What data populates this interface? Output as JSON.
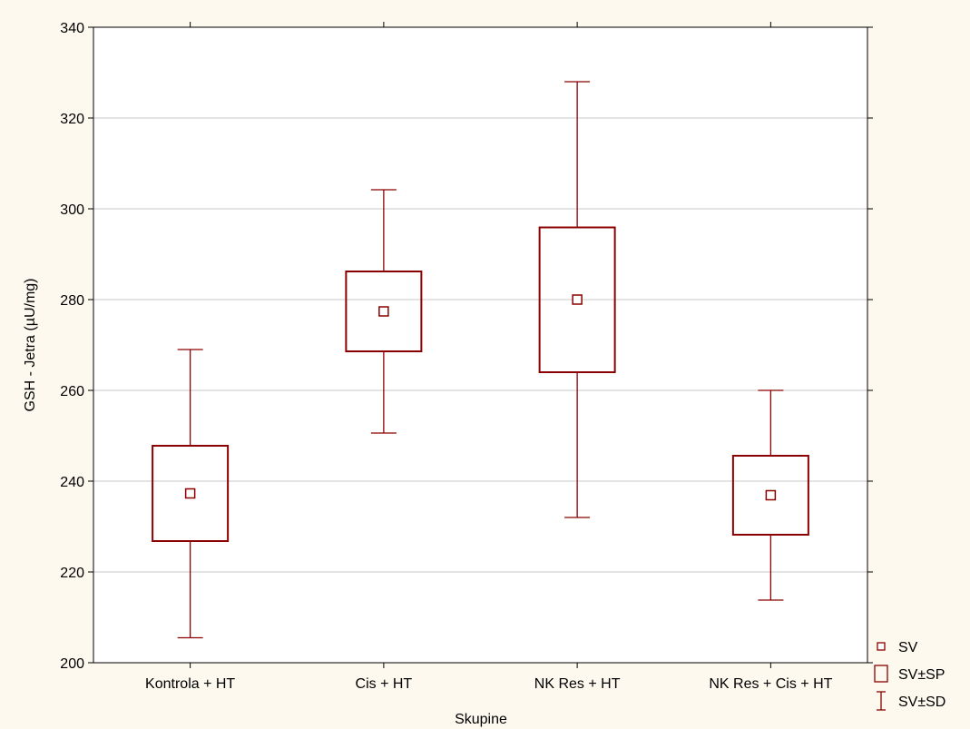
{
  "colors": {
    "background": "#fdf9ef",
    "plot_area": "#ffffff",
    "series": "#8b0000",
    "grid": "#c8c8c8",
    "axis": "#000000"
  },
  "chart_data": {
    "type": "box",
    "title": "",
    "xlabel": "Skupine",
    "ylabel": "GSH - Jetra (µU/mg)",
    "ylim": [
      200,
      340
    ],
    "yticks": [
      200,
      220,
      240,
      260,
      280,
      300,
      320,
      340
    ],
    "grid": "horizontal",
    "legend_position": "bottom-right-outside",
    "categories": [
      "Kontrola + HT",
      "Cis + HT",
      "NK Res + HT",
      "NK Res + Cis + HT"
    ],
    "series": [
      {
        "name": "SV",
        "values": [
          237.3,
          277.4,
          280.0,
          236.9
        ]
      },
      {
        "name": "SV±SP",
        "low": [
          226.8,
          268.6,
          264.0,
          228.2
        ],
        "high": [
          247.8,
          286.2,
          295.9,
          245.6
        ]
      },
      {
        "name": "SV±SD",
        "low": [
          205.5,
          250.6,
          232.0,
          213.8
        ],
        "high": [
          269.0,
          304.2,
          328.0,
          260.0
        ]
      }
    ],
    "legend": [
      {
        "symbol": "mean-square",
        "label": "SV"
      },
      {
        "symbol": "box",
        "label": "SV±SP"
      },
      {
        "symbol": "whisker",
        "label": "SV±SD"
      }
    ]
  }
}
